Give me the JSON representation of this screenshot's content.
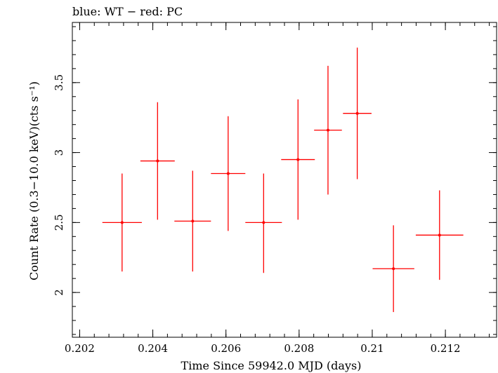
{
  "chart_data": {
    "type": "scatter",
    "title": "blue: WT − red: PC",
    "xlabel": "Time Since 59942.0 MJD (days)",
    "ylabel": "Count Rate (0.3−10.0 keV)(cts s⁻¹)",
    "xlim": [
      0.2018,
      0.2134
    ],
    "ylim": [
      1.68,
      3.93
    ],
    "x_ticks": [
      0.202,
      0.204,
      0.206,
      0.208,
      0.21,
      0.212
    ],
    "x_tick_labels": [
      "0.202",
      "0.204",
      "0.206",
      "0.208",
      "0.21",
      "0.212"
    ],
    "y_ticks": [
      2,
      2.5,
      3,
      3.5
    ],
    "y_tick_labels": [
      "2",
      "2.5",
      "3",
      "3.5"
    ],
    "grid": false,
    "series": [
      {
        "name": "PC",
        "color": "#ff0000",
        "points": [
          {
            "x": 0.20316,
            "xerr": 0.00054,
            "y": 2.5,
            "yerr_low": 0.35,
            "yerr_high": 0.35
          },
          {
            "x": 0.20413,
            "xerr": 0.00047,
            "y": 2.94,
            "yerr_low": 0.42,
            "yerr_high": 0.42
          },
          {
            "x": 0.20509,
            "xerr": 0.0005,
            "y": 2.51,
            "yerr_low": 0.36,
            "yerr_high": 0.36
          },
          {
            "x": 0.20606,
            "xerr": 0.00047,
            "y": 2.85,
            "yerr_low": 0.41,
            "yerr_high": 0.41
          },
          {
            "x": 0.20703,
            "xerr": 0.0005,
            "y": 2.5,
            "yerr_low": 0.36,
            "yerr_high": 0.35
          },
          {
            "x": 0.20797,
            "xerr": 0.00046,
            "y": 2.95,
            "yerr_low": 0.43,
            "yerr_high": 0.43
          },
          {
            "x": 0.20879,
            "xerr": 0.00038,
            "y": 3.16,
            "yerr_low": 0.46,
            "yerr_high": 0.46
          },
          {
            "x": 0.20959,
            "xerr": 0.00039,
            "y": 3.28,
            "yerr_low": 0.47,
            "yerr_high": 0.47
          },
          {
            "x": 0.21058,
            "xerr": 0.00057,
            "y": 2.17,
            "yerr_low": 0.31,
            "yerr_high": 0.31
          },
          {
            "x": 0.21184,
            "xerr": 0.00065,
            "y": 2.41,
            "yerr_low": 0.32,
            "yerr_high": 0.32
          }
        ]
      }
    ]
  }
}
